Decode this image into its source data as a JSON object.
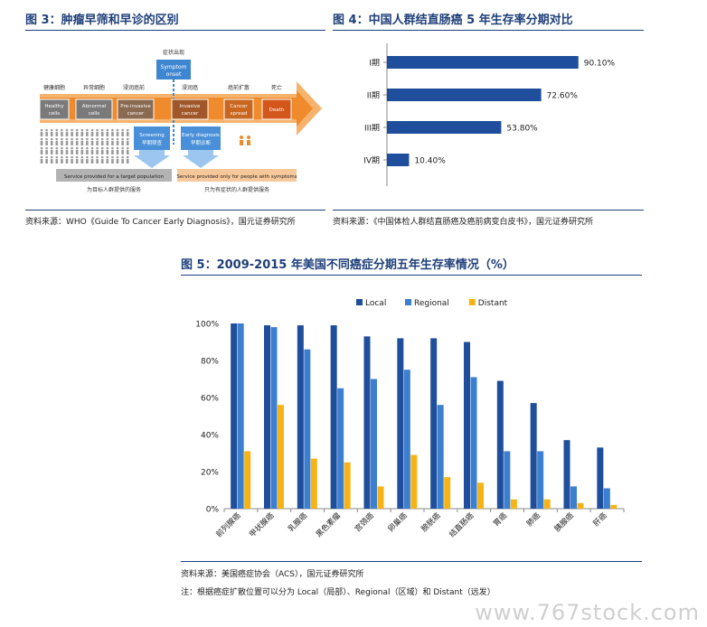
{
  "fig3": {
    "title": "图 3：肿瘤早筛和早诊的区别",
    "source": "资料来源：WHO《Guide To Cancer Early Diagnosis》，国元证券研究所",
    "symptom_cn": "症状出现",
    "symptom_box": [
      "Symptom",
      "onset"
    ],
    "stages_cn": [
      "健康细胞",
      "异常细胞",
      "浸润癌前",
      "浸润癌",
      "癌前扩散",
      "死亡"
    ],
    "stages": [
      [
        "Healthy",
        "cells"
      ],
      [
        "Abnormal",
        "cells"
      ],
      [
        "Pre-invasive",
        "cancer"
      ],
      [
        "Invasive",
        "cancer"
      ],
      [
        "Cancer",
        "spread"
      ],
      [
        "Death"
      ]
    ],
    "screening": [
      "Screening",
      "早期筛查"
    ],
    "early_diagnosis": [
      "Early diagnosis",
      "早期诊断"
    ],
    "target_service": "Service provided for a target population",
    "target_service_cn": "为目标人群提供的服务",
    "symptom_service": "Service provided only for people with symptoms",
    "symptom_service_cn": "只为有症状的人群提供服务"
  },
  "fig4": {
    "title": "图 4：中国人群结直肠癌 5 年生存率分期对比",
    "source": "资料来源：《中国体检人群结直肠癌及癌前病变白皮书》，国元证券研究所",
    "chart_data": {
      "type": "bar",
      "orientation": "horizontal",
      "categories": [
        "I期",
        "II期",
        "III期",
        "IV期"
      ],
      "values": [
        90.1,
        72.6,
        53.8,
        10.4
      ],
      "value_labels": [
        "90.10%",
        "72.60%",
        "53.80%",
        "10.40%"
      ],
      "xlim": [
        0,
        100
      ],
      "color": "#1f4e9c"
    }
  },
  "fig5": {
    "title": "图 5：2009-2015 年美国不同癌症分期五年生存率情况（%）",
    "source": "资料来源：美国癌症协会（ACS），国元证券研究所",
    "note": "注：根据癌症扩散位置可以分为 Local（局部）、Regional（区域）和 Distant（远发）",
    "chart_data": {
      "type": "bar",
      "categories": [
        "前列腺癌",
        "甲状腺癌",
        "乳腺癌",
        "黑色素瘤",
        "宫颈癌",
        "卵巢癌",
        "膀胱癌",
        "结直肠癌",
        "胃癌",
        "肺癌",
        "胰腺癌",
        "肝癌"
      ],
      "series": [
        {
          "name": "Local",
          "color": "#1f4e9c",
          "values": [
            100,
            99,
            99,
            99,
            93,
            92,
            92,
            90,
            69,
            57,
            37,
            33
          ]
        },
        {
          "name": "Regional",
          "color": "#3d7fcf",
          "values": [
            100,
            98,
            86,
            65,
            70,
            75,
            56,
            71,
            31,
            31,
            12,
            11
          ]
        },
        {
          "name": "Distant",
          "color": "#f6b316",
          "values": [
            31,
            56,
            27,
            25,
            12,
            29,
            17,
            14,
            5,
            5,
            3,
            2
          ]
        }
      ],
      "ylim": [
        0,
        100
      ],
      "yticks": [
        "0%",
        "20%",
        "40%",
        "60%",
        "80%",
        "100%"
      ],
      "legend": "top"
    }
  },
  "watermark": "www.767stock.com"
}
